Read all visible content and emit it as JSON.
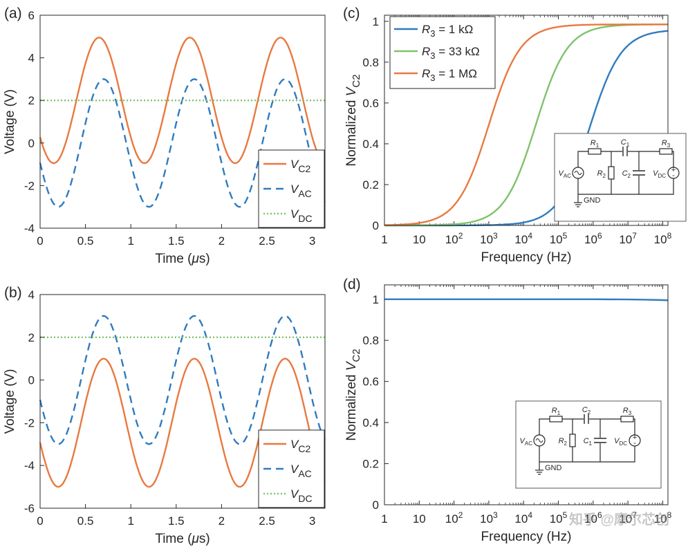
{
  "chart_data": [
    {
      "panel": "(a)",
      "type": "line",
      "title": "",
      "xlabel": "Time (μs)",
      "ylabel": "Voltage (V)",
      "xlim": [
        0,
        3.14
      ],
      "ylim": [
        -4,
        6
      ],
      "xticks": [
        "0",
        "0.5",
        "1",
        "1.5",
        "2",
        "2.5",
        "3"
      ],
      "yticks": [
        "-4",
        "-2",
        "0",
        "2",
        "4",
        "6"
      ],
      "legend_position": "bottom-right",
      "series": [
        {
          "name": "V_C2",
          "legend_main": "V",
          "legend_sub": "C2",
          "style": "solid",
          "color": "#e8793f",
          "offset": 2,
          "amplitude": 2.95,
          "frequency_MHz": 1,
          "phase": 0.8
        },
        {
          "name": "V_AC",
          "legend_main": "V",
          "legend_sub": "AC",
          "style": "dashed",
          "color": "#2f7bbf",
          "offset": 0,
          "amplitude": 3,
          "frequency_MHz": 1,
          "phase": 0.9
        },
        {
          "name": "V_DC",
          "legend_main": "V",
          "legend_sub": "DC",
          "style": "dotted",
          "color": "#7ec26b",
          "value": 2
        }
      ]
    },
    {
      "panel": "(b)",
      "type": "line",
      "title": "",
      "xlabel": "Time (μs)",
      "ylabel": "Voltage (V)",
      "xlim": [
        0,
        3.14
      ],
      "ylim": [
        -6,
        4
      ],
      "xticks": [
        "0",
        "0.5",
        "1",
        "1.5",
        "2",
        "2.5",
        "3"
      ],
      "yticks": [
        "-6",
        "-4",
        "-2",
        "0",
        "2",
        "4"
      ],
      "legend_position": "bottom-right",
      "series": [
        {
          "name": "V_C2",
          "legend_main": "V",
          "legend_sub": "C2",
          "style": "solid",
          "color": "#e8793f",
          "offset": -2,
          "amplitude": 3,
          "frequency_MHz": 1,
          "phase": 0.9
        },
        {
          "name": "V_AC",
          "legend_main": "V",
          "legend_sub": "AC",
          "style": "dashed",
          "color": "#2f7bbf",
          "offset": 0,
          "amplitude": 3,
          "frequency_MHz": 1,
          "phase": 0.9
        },
        {
          "name": "V_DC",
          "legend_main": "V",
          "legend_sub": "DC",
          "style": "dotted",
          "color": "#7ec26b",
          "value": 2
        }
      ]
    },
    {
      "panel": "(c)",
      "type": "line",
      "title": "",
      "xlabel": "Frequency (Hz)",
      "ylabel_main": "Normalized V",
      "ylabel_sub": "C2",
      "xscale": "log",
      "xlim_log10": [
        0,
        8.15
      ],
      "ylim": [
        0,
        1.03
      ],
      "xticks": [
        "1",
        "10",
        "10^2",
        "10^3",
        "10^4",
        "10^5",
        "10^6",
        "10^7",
        "10^8"
      ],
      "yticks": [
        "0",
        "0.2",
        "0.4",
        "0.6",
        "0.8",
        "1"
      ],
      "legend_position": "top-left",
      "series": [
        {
          "name": "R3 = 1 kΩ",
          "legend_sym": "R",
          "legend_sub": "3",
          "legend_val": " = 1 kΩ",
          "color": "#2f7bbf",
          "plateau": 0.96,
          "midpoint_log10": 5.9,
          "steepness": 2.2
        },
        {
          "name": "R3 = 33 kΩ",
          "legend_sym": "R",
          "legend_sub": "3",
          "legend_val": " = 33 kΩ",
          "color": "#7ec26b",
          "plateau": 0.985,
          "midpoint_log10": 4.35,
          "steepness": 2.2
        },
        {
          "name": "R3 = 1 MΩ",
          "legend_sym": "R",
          "legend_sub": "3",
          "legend_val": " = 1 MΩ",
          "color": "#e8793f",
          "plateau": 0.985,
          "midpoint_log10": 3.0,
          "steepness": 2.2
        }
      ],
      "inset": {
        "r1": "R",
        "r1_sub": "1",
        "c_series": "C",
        "c_series_sub": "1",
        "r2": "R",
        "r2_sub": "2",
        "c_shunt": "C",
        "c_shunt_sub": "2",
        "r3": "R",
        "r3_sub": "3",
        "vac": "V",
        "vac_sub": "AC",
        "vdc": "V",
        "vdc_sub": "DC",
        "gnd": "GND"
      }
    },
    {
      "panel": "(d)",
      "type": "line",
      "title": "",
      "xlabel": "Frequency (Hz)",
      "ylabel_main": "Normalized V",
      "ylabel_sub": "C2",
      "xscale": "log",
      "xlim_log10": [
        0,
        8.15
      ],
      "ylim": [
        0,
        1.07
      ],
      "xticks": [
        "1",
        "10",
        "10^2",
        "10^3",
        "10^4",
        "10^5",
        "10^6",
        "10^7",
        "10^8"
      ],
      "yticks": [
        "0",
        "0.2",
        "0.4",
        "0.6",
        "0.8",
        "1"
      ],
      "series": [
        {
          "name": "Normalized V_C2",
          "color": "#2f7bbf",
          "x_log10": [
            0,
            2,
            4,
            6,
            7,
            7.5,
            8,
            8.15
          ],
          "y": [
            1.0,
            1.0,
            1.0,
            1.0,
            0.999,
            0.998,
            0.996,
            0.995
          ]
        }
      ],
      "inset": {
        "r1": "R",
        "r1_sub": "1",
        "c_series": "C",
        "c_series_sub": "2",
        "r2": "R",
        "r2_sub": "2",
        "c_shunt": "C",
        "c_shunt_sub": "1",
        "r3": "R",
        "r3_sub": "3",
        "vac": "V",
        "vac_sub": "AC",
        "vdc": "V",
        "vdc_sub": "DC",
        "gnd": "GND"
      }
    }
  ],
  "watermark": "知乎 @摩尔芯创"
}
